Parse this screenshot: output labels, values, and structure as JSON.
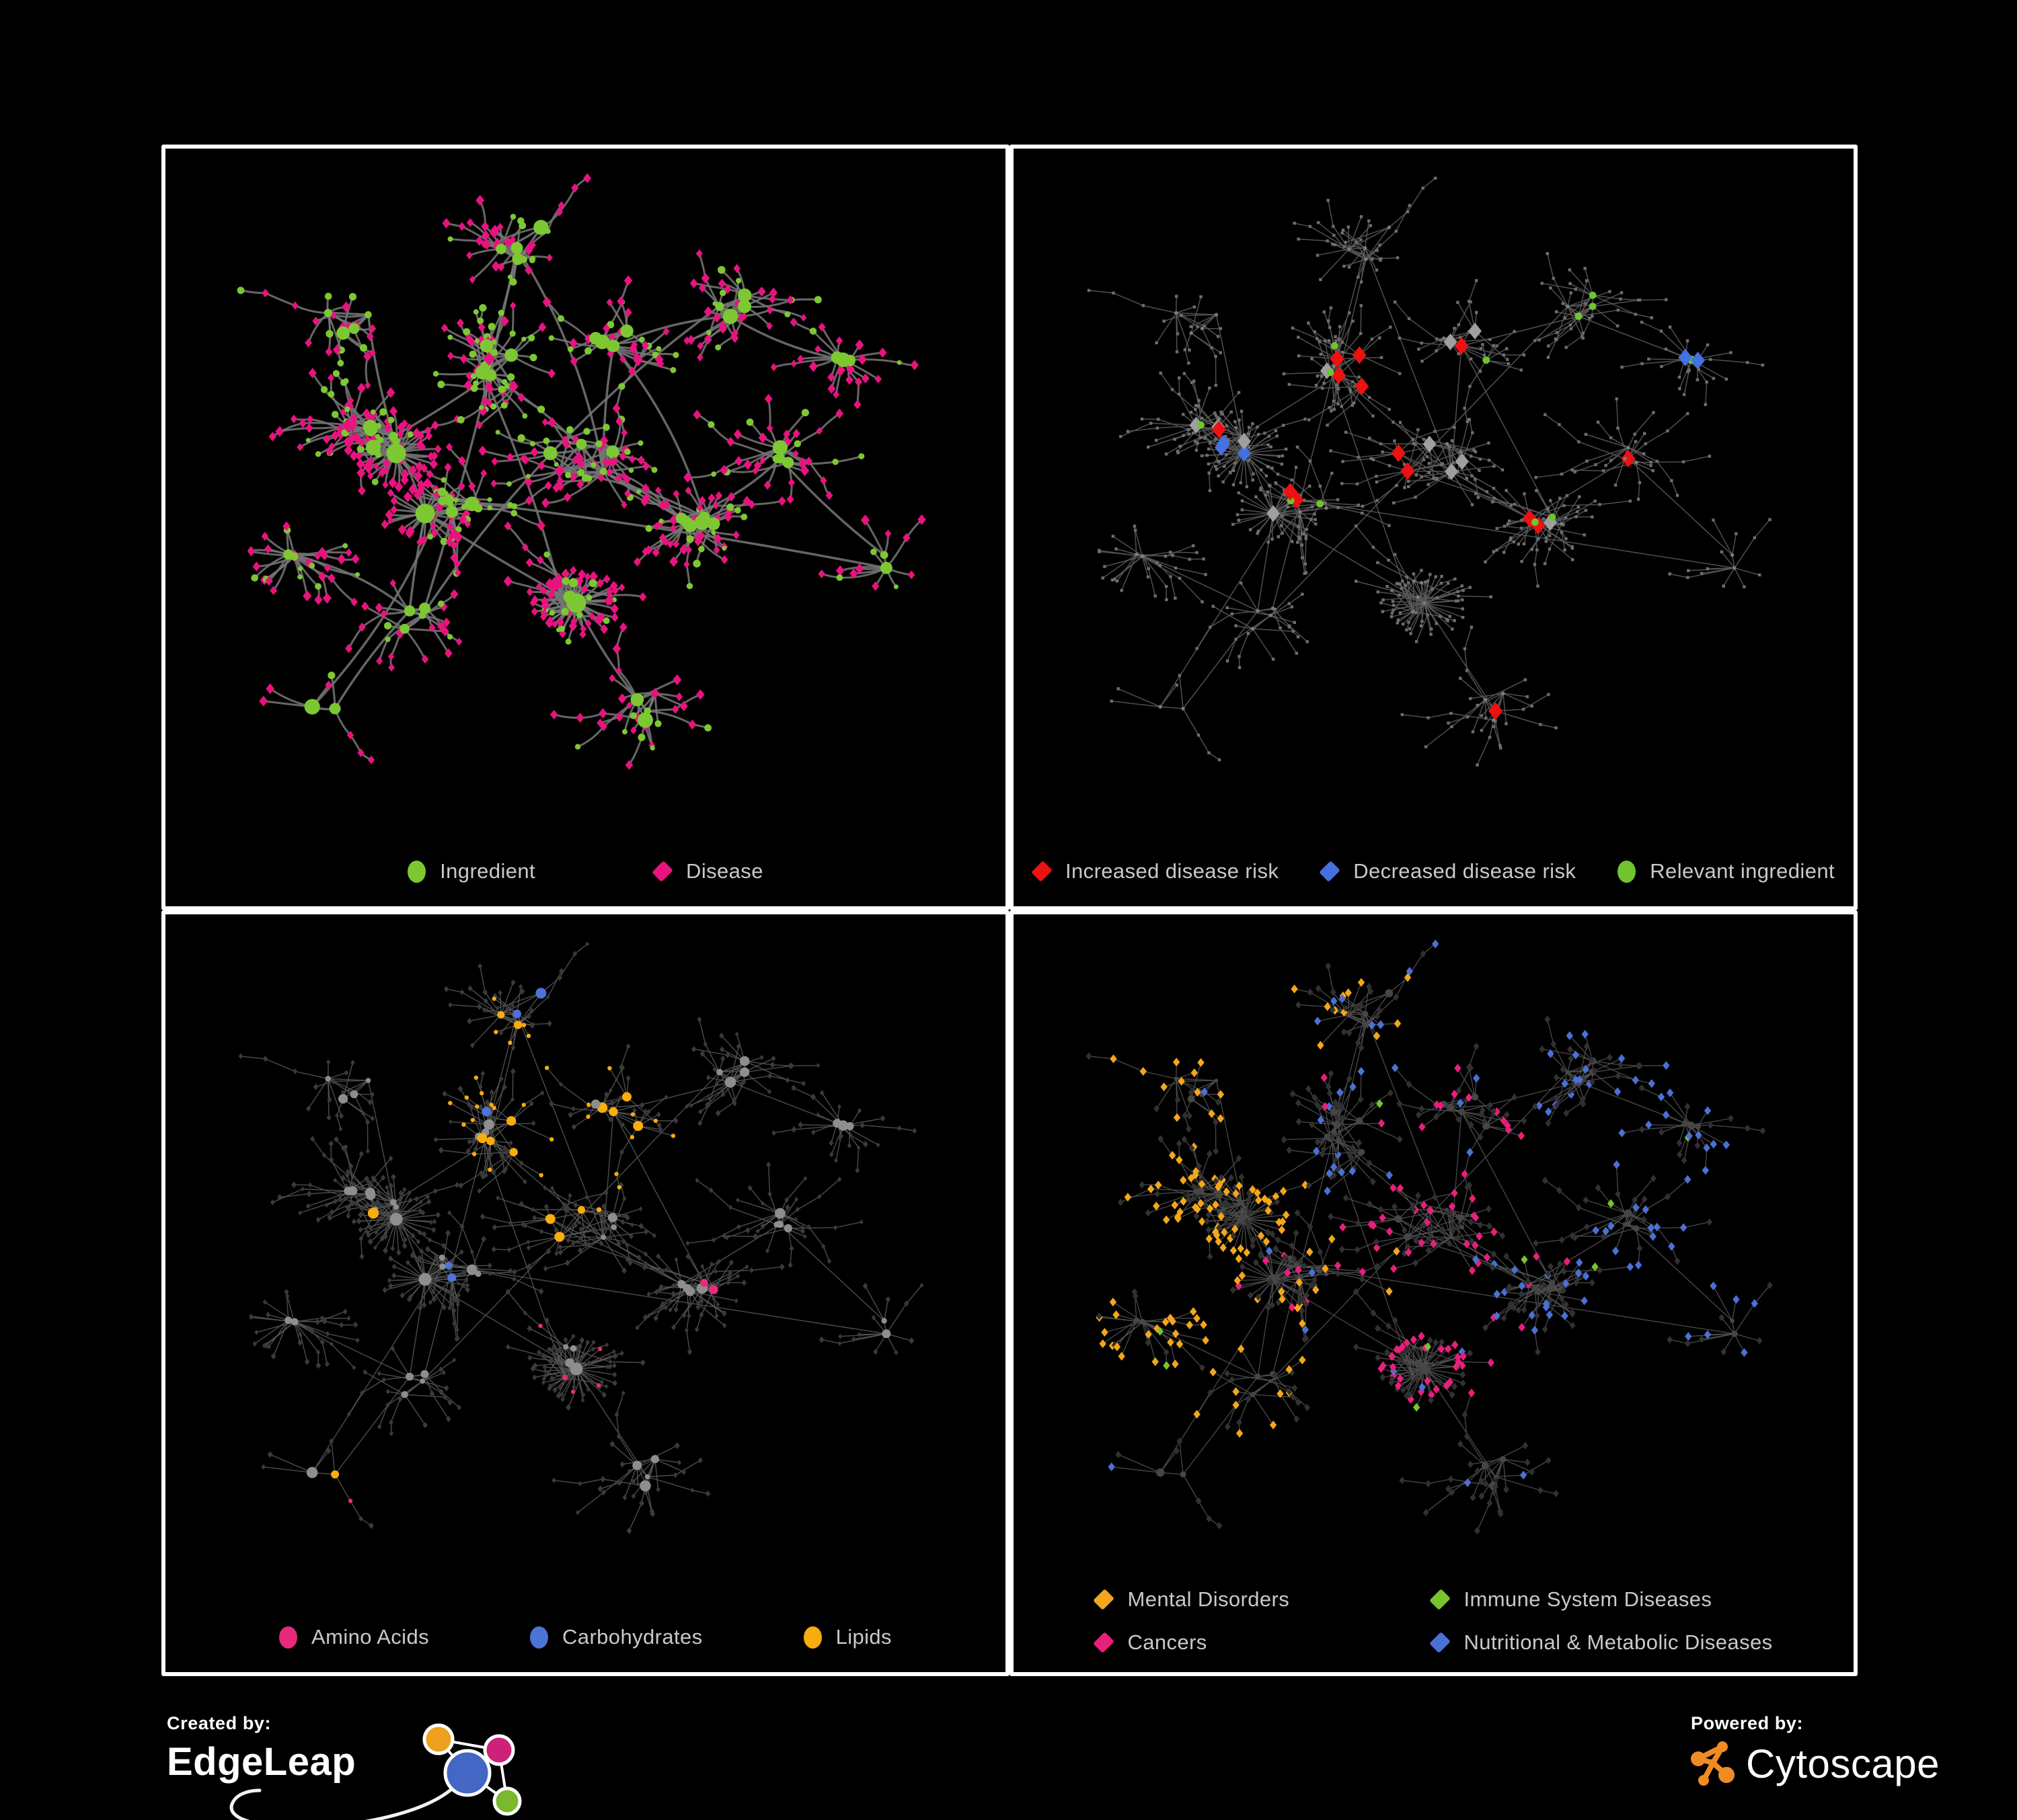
{
  "page": {
    "background": "#000000",
    "panel_border": "#ffffff"
  },
  "network_seed": 42,
  "panels": [
    {
      "id": "ingredient-disease-network",
      "legend": [
        {
          "label": "Ingredient",
          "shape": "circle",
          "color": "#7dc832"
        },
        {
          "label": "Disease",
          "shape": "diamond",
          "color": "#e8137f"
        }
      ],
      "palette": {
        "edge": "#747474",
        "hub": "#7dc832",
        "leaf": "#e8137f"
      }
    },
    {
      "id": "disease-risk-network",
      "legend": [
        {
          "label": "Increased disease risk",
          "shape": "diamond",
          "color": "#ee1111"
        },
        {
          "label": "Decreased disease risk",
          "shape": "diamond",
          "color": "#4470e0"
        },
        {
          "label": "Relevant ingredient",
          "shape": "circle",
          "color": "#70c42f"
        }
      ],
      "palette": {
        "edge": "#5a5a5a",
        "base": "#6e6e6e",
        "basehub": "#7d7d7d",
        "increased": "#ee1111",
        "decreased": "#4470e0",
        "neutral": "#9f9f9f",
        "ingredient": "#70c42f"
      }
    },
    {
      "id": "nutrient-class-network",
      "legend": [
        {
          "label": "Amino Acids",
          "shape": "circle",
          "color": "#e82a7c"
        },
        {
          "label": "Carbohydrates",
          "shape": "circle",
          "color": "#4e73d8"
        },
        {
          "label": "Lipids",
          "shape": "circle",
          "color": "#f9ac0d"
        }
      ],
      "palette": {
        "edge": "#565656",
        "leaf": "#3a3a3a",
        "hub": "#8e8e8e",
        "amino": "#e82a7c",
        "carb": "#4e73d8",
        "lipid": "#f9ac0d"
      }
    },
    {
      "id": "disease-class-network",
      "legend": [
        {
          "label": "Mental Disorders",
          "shape": "diamond",
          "color": "#f4a71a"
        },
        {
          "label": "Immune System Diseases",
          "shape": "diamond",
          "color": "#79c32e"
        },
        {
          "label": "Cancers",
          "shape": "diamond",
          "color": "#e81f7b"
        },
        {
          "label": "Nutritional & Metabolic Diseases",
          "shape": "diamond",
          "color": "#4b70d6"
        }
      ],
      "palette": {
        "edge": "#515151",
        "leaf": "#313131",
        "hub": "#464646",
        "mental": "#f4a71a",
        "immune": "#79c32e",
        "cancer": "#e81f7b",
        "nutritional": "#4b70d6"
      }
    }
  ],
  "footer": {
    "created_by_label": "Created by:",
    "created_by_brand": "EdgeLeap",
    "powered_by_label": "Powered by:",
    "powered_by_brand": "Cytoscape",
    "cytoscape_accent": "#f08b24",
    "edgeleap_colors": {
      "orange": "#efa11e",
      "magenta": "#cc2277",
      "blue": "#4467c6",
      "green": "#7ab82d"
    }
  }
}
